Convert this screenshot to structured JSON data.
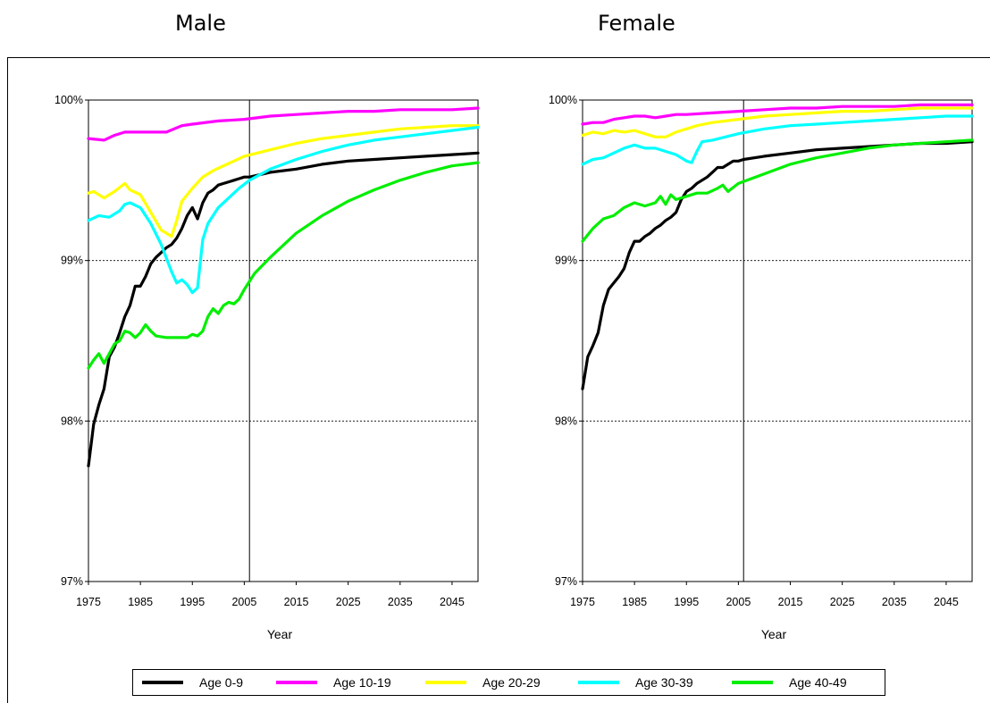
{
  "panels": [
    {
      "title": "Male"
    },
    {
      "title": "Female"
    }
  ],
  "legend": [
    {
      "label": "Age 0-9",
      "color": "#000000"
    },
    {
      "label": "Age 10-19",
      "color": "#ff00ff"
    },
    {
      "label": "Age 20-29",
      "color": "#ffff00"
    },
    {
      "label": "Age 30-39",
      "color": "#00ffff"
    },
    {
      "label": "Age 40-49",
      "color": "#00ee00"
    }
  ],
  "chart_data": [
    {
      "type": "line",
      "title": "Male",
      "xlabel": "Year",
      "ylabel": "",
      "xlim": [
        1975,
        2050
      ],
      "ylim": [
        97,
        100
      ],
      "x_ticks": [
        1975,
        1985,
        1995,
        2005,
        2015,
        2025,
        2035,
        2045
      ],
      "y_ticks": [
        97,
        98,
        99,
        100
      ],
      "y_tick_labels": [
        "97%",
        "98%",
        "99%",
        "100%"
      ],
      "gridlines": [
        98,
        99
      ],
      "vertical_marker": 2006,
      "series": [
        {
          "name": "Age 0-9",
          "color": "#000000",
          "x": [
            1975,
            1976,
            1977,
            1978,
            1979,
            1980,
            1981,
            1982,
            1983,
            1984,
            1985,
            1986,
            1987,
            1988,
            1989,
            1990,
            1991,
            1992,
            1993,
            1994,
            1995,
            1996,
            1997,
            1998,
            1999,
            2000,
            2001,
            2002,
            2003,
            2004,
            2005,
            2006,
            2010,
            2015,
            2020,
            2025,
            2030,
            2035,
            2040,
            2045,
            2050
          ],
          "y": [
            97.72,
            97.98,
            98.1,
            98.2,
            98.4,
            98.46,
            98.55,
            98.65,
            98.72,
            98.84,
            98.84,
            98.9,
            98.98,
            99.02,
            99.05,
            99.08,
            99.1,
            99.14,
            99.2,
            99.28,
            99.33,
            99.26,
            99.36,
            99.42,
            99.44,
            99.47,
            99.48,
            99.49,
            99.5,
            99.51,
            99.52,
            99.52,
            99.55,
            99.57,
            99.6,
            99.62,
            99.63,
            99.64,
            99.65,
            99.66,
            99.67
          ]
        },
        {
          "name": "Age 10-19",
          "color": "#ff00ff",
          "x": [
            1975,
            1978,
            1980,
            1982,
            1985,
            1990,
            1993,
            1995,
            2000,
            2005,
            2010,
            2015,
            2020,
            2025,
            2030,
            2035,
            2040,
            2045,
            2050
          ],
          "y": [
            99.76,
            99.75,
            99.78,
            99.8,
            99.8,
            99.8,
            99.84,
            99.85,
            99.87,
            99.88,
            99.9,
            99.91,
            99.92,
            99.93,
            99.93,
            99.94,
            99.94,
            99.94,
            99.95
          ]
        },
        {
          "name": "Age 20-29",
          "color": "#ffff00",
          "x": [
            1975,
            1976,
            1978,
            1980,
            1982,
            1983,
            1985,
            1987,
            1989,
            1990,
            1991,
            1992,
            1993,
            1995,
            1997,
            1999,
            2001,
            2003,
            2005,
            2010,
            2015,
            2020,
            2025,
            2030,
            2035,
            2040,
            2045,
            2050
          ],
          "y": [
            99.42,
            99.43,
            99.39,
            99.43,
            99.48,
            99.44,
            99.41,
            99.3,
            99.19,
            99.17,
            99.15,
            99.25,
            99.37,
            99.45,
            99.52,
            99.56,
            99.59,
            99.62,
            99.65,
            99.69,
            99.73,
            99.76,
            99.78,
            99.8,
            99.82,
            99.83,
            99.84,
            99.84
          ]
        },
        {
          "name": "Age 30-39",
          "color": "#00ffff",
          "x": [
            1975,
            1977,
            1979,
            1981,
            1982,
            1983,
            1985,
            1987,
            1989,
            1991,
            1992,
            1993,
            1994,
            1995,
            1996,
            1997,
            1998,
            2000,
            2002,
            2004,
            2006,
            2010,
            2015,
            2020,
            2025,
            2030,
            2035,
            2040,
            2045,
            2050
          ],
          "y": [
            99.25,
            99.28,
            99.27,
            99.31,
            99.35,
            99.36,
            99.33,
            99.23,
            99.1,
            98.93,
            98.86,
            98.88,
            98.85,
            98.8,
            98.83,
            99.13,
            99.23,
            99.33,
            99.39,
            99.45,
            99.5,
            99.57,
            99.63,
            99.68,
            99.72,
            99.75,
            99.77,
            99.79,
            99.81,
            99.83
          ]
        },
        {
          "name": "Age 40-49",
          "color": "#00ee00",
          "x": [
            1975,
            1976,
            1977,
            1978,
            1979,
            1980,
            1981,
            1982,
            1983,
            1984,
            1985,
            1986,
            1987,
            1988,
            1990,
            1992,
            1994,
            1995,
            1996,
            1997,
            1998,
            1999,
            2000,
            2001,
            2002,
            2003,
            2004,
            2005,
            2007,
            2010,
            2015,
            2020,
            2025,
            2030,
            2035,
            2040,
            2045,
            2050
          ],
          "y": [
            98.33,
            98.38,
            98.42,
            98.36,
            98.42,
            98.48,
            98.5,
            98.56,
            98.55,
            98.52,
            98.55,
            98.6,
            98.56,
            98.53,
            98.52,
            98.52,
            98.52,
            98.54,
            98.53,
            98.56,
            98.65,
            98.7,
            98.67,
            98.72,
            98.74,
            98.73,
            98.76,
            98.82,
            98.92,
            99.02,
            99.17,
            99.28,
            99.37,
            99.44,
            99.5,
            99.55,
            99.59,
            99.61
          ]
        }
      ]
    },
    {
      "type": "line",
      "title": "Female",
      "xlabel": "Year",
      "ylabel": "",
      "xlim": [
        1975,
        2050
      ],
      "ylim": [
        97,
        100
      ],
      "x_ticks": [
        1975,
        1985,
        1995,
        2005,
        2015,
        2025,
        2035,
        2045
      ],
      "y_ticks": [
        97,
        98,
        99,
        100
      ],
      "y_tick_labels": [
        "97%",
        "98%",
        "99%",
        "100%"
      ],
      "gridlines": [
        98,
        99
      ],
      "vertical_marker": 2006,
      "series": [
        {
          "name": "Age 0-9",
          "color": "#000000",
          "x": [
            1975,
            1976,
            1977,
            1978,
            1979,
            1980,
            1981,
            1982,
            1983,
            1984,
            1985,
            1986,
            1987,
            1988,
            1989,
            1990,
            1991,
            1992,
            1993,
            1994,
            1995,
            1996,
            1997,
            1998,
            1999,
            2000,
            2001,
            2002,
            2003,
            2004,
            2005,
            2006,
            2010,
            2015,
            2020,
            2025,
            2030,
            2035,
            2040,
            2045,
            2050
          ],
          "y": [
            98.2,
            98.4,
            98.47,
            98.55,
            98.72,
            98.82,
            98.86,
            98.9,
            98.95,
            99.05,
            99.12,
            99.12,
            99.15,
            99.17,
            99.2,
            99.22,
            99.25,
            99.27,
            99.3,
            99.38,
            99.43,
            99.45,
            99.48,
            99.5,
            99.52,
            99.55,
            99.58,
            99.58,
            99.6,
            99.62,
            99.62,
            99.63,
            99.65,
            99.67,
            99.69,
            99.7,
            99.71,
            99.72,
            99.73,
            99.73,
            99.74
          ]
        },
        {
          "name": "Age 10-19",
          "color": "#ff00ff",
          "x": [
            1975,
            1977,
            1979,
            1981,
            1983,
            1985,
            1987,
            1989,
            1991,
            1993,
            1995,
            2000,
            2005,
            2010,
            2015,
            2020,
            2025,
            2030,
            2035,
            2040,
            2045,
            2050
          ],
          "y": [
            99.85,
            99.86,
            99.86,
            99.88,
            99.89,
            99.9,
            99.9,
            99.89,
            99.9,
            99.91,
            99.91,
            99.92,
            99.93,
            99.94,
            99.95,
            99.95,
            99.96,
            99.96,
            99.96,
            99.97,
            99.97,
            99.97
          ]
        },
        {
          "name": "Age 20-29",
          "color": "#ffff00",
          "x": [
            1975,
            1977,
            1979,
            1981,
            1983,
            1985,
            1987,
            1989,
            1991,
            1993,
            1995,
            1997,
            2000,
            2005,
            2010,
            2015,
            2020,
            2025,
            2030,
            2035,
            2040,
            2045,
            2050
          ],
          "y": [
            99.78,
            99.8,
            99.79,
            99.81,
            99.8,
            99.81,
            99.79,
            99.77,
            99.77,
            99.8,
            99.82,
            99.84,
            99.86,
            99.88,
            99.9,
            99.91,
            99.92,
            99.93,
            99.93,
            99.94,
            99.95,
            99.95,
            99.95
          ]
        },
        {
          "name": "Age 30-39",
          "color": "#00ffff",
          "x": [
            1975,
            1977,
            1979,
            1981,
            1983,
            1985,
            1987,
            1989,
            1991,
            1993,
            1995,
            1996,
            1997,
            1998,
            2000,
            2005,
            2010,
            2015,
            2020,
            2025,
            2030,
            2035,
            2040,
            2045,
            2050
          ],
          "y": [
            99.6,
            99.63,
            99.64,
            99.67,
            99.7,
            99.72,
            99.7,
            99.7,
            99.68,
            99.66,
            99.62,
            99.61,
            99.68,
            99.74,
            99.75,
            99.79,
            99.82,
            99.84,
            99.85,
            99.86,
            99.87,
            99.88,
            99.89,
            99.9,
            99.9
          ]
        },
        {
          "name": "Age 40-49",
          "color": "#00ee00",
          "x": [
            1975,
            1977,
            1979,
            1981,
            1983,
            1985,
            1987,
            1989,
            1990,
            1991,
            1992,
            1993,
            1995,
            1997,
            1999,
            2001,
            2002,
            2003,
            2005,
            2010,
            2015,
            2020,
            2025,
            2030,
            2035,
            2040,
            2045,
            2050
          ],
          "y": [
            99.12,
            99.2,
            99.26,
            99.28,
            99.33,
            99.36,
            99.34,
            99.36,
            99.4,
            99.35,
            99.41,
            99.38,
            99.4,
            99.42,
            99.42,
            99.45,
            99.47,
            99.43,
            99.48,
            99.54,
            99.6,
            99.64,
            99.67,
            99.7,
            99.72,
            99.73,
            99.74,
            99.75
          ]
        }
      ]
    }
  ]
}
